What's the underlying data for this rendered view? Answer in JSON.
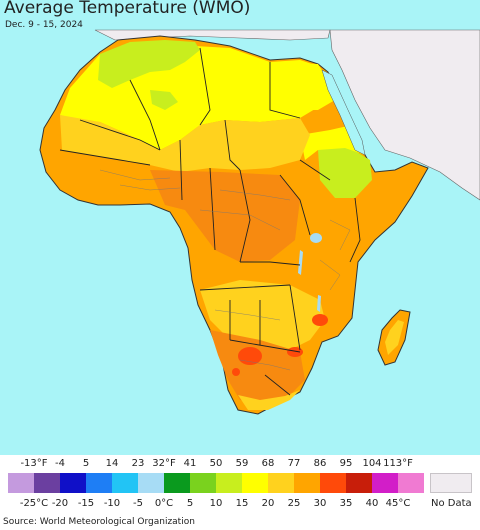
{
  "title": "Average Temperature (WMO)",
  "date_range": "Dec. 9 - 15, 2024",
  "source": "Source: World Meteorological Organization",
  "legend": {
    "fahrenheit_labels": [
      "-13°F",
      "-4",
      "5",
      "14",
      "23",
      "32°F",
      "41",
      "50",
      "59",
      "68",
      "77",
      "86",
      "95",
      "104",
      "113°F"
    ],
    "celsius_labels": [
      "-25°C",
      "-20",
      "-15",
      "-10",
      "-5",
      "0°C",
      "5",
      "10",
      "15",
      "20",
      "25",
      "30",
      "35",
      "40",
      "45°C"
    ],
    "colors": [
      "#c49ade",
      "#6b3fa0",
      "#1010c8",
      "#1e7ef5",
      "#22c4f5",
      "#a7dcf5",
      "#0a9a1e",
      "#7ad21e",
      "#c8ee1e",
      "#ffff00",
      "#ffd21e",
      "#ffa500",
      "#ff4a0a",
      "#c81e0a",
      "#d21ec8",
      "#f07ad2"
    ],
    "no_data_label": "No Data",
    "no_data_color": "#f0ecf0"
  },
  "map_colors": {
    "ocean": "#a9f4f7",
    "no_data_land": "#f0ecf0",
    "green": "#c8ee1e",
    "yellow": "#ffff00",
    "light_orange": "#ffd21e",
    "orange": "#ffa500",
    "dark_orange": "#f78a10",
    "red": "#ff4a0a",
    "border": "#555555"
  }
}
